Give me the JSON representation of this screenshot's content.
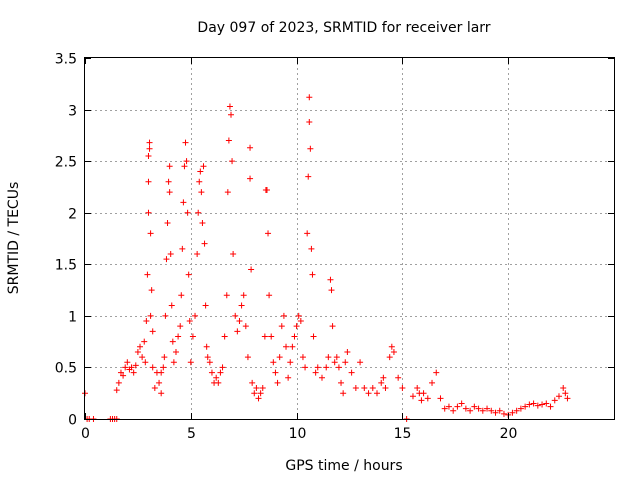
{
  "chart_data": {
    "type": "scatter",
    "title": "Day 097 of 2023, SRMTID for receiver larr",
    "xlabel": "GPS time / hours",
    "ylabel": "SRMTID / TECUs",
    "xlim": [
      0,
      25
    ],
    "ylim": [
      0,
      3.5
    ],
    "x_ticks": [
      0,
      5,
      10,
      15,
      20
    ],
    "x_tick_labels": [
      "0",
      "5",
      "10",
      "15",
      "20"
    ],
    "y_ticks": [
      0,
      0.5,
      1,
      1.5,
      2,
      2.5,
      3,
      3.5
    ],
    "y_tick_labels": [
      "0",
      "0.5",
      "1",
      "1.5",
      "2",
      "2.5",
      "3",
      "3.5"
    ],
    "grid": true,
    "marker": "+",
    "color": "#ff0000",
    "series": [
      {
        "name": "SRMTID",
        "points": [
          [
            0.0,
            0.25
          ],
          [
            0.1,
            0.0
          ],
          [
            0.2,
            0.0
          ],
          [
            0.4,
            0.0
          ],
          [
            1.2,
            0.0
          ],
          [
            1.3,
            0.0
          ],
          [
            1.4,
            0.0
          ],
          [
            1.5,
            0.0
          ],
          [
            1.5,
            0.28
          ],
          [
            1.6,
            0.35
          ],
          [
            1.7,
            0.45
          ],
          [
            1.8,
            0.42
          ],
          [
            1.9,
            0.5
          ],
          [
            2.0,
            0.55
          ],
          [
            2.1,
            0.48
          ],
          [
            2.2,
            0.5
          ],
          [
            2.3,
            0.45
          ],
          [
            2.4,
            0.52
          ],
          [
            2.5,
            0.65
          ],
          [
            2.6,
            0.7
          ],
          [
            2.7,
            0.6
          ],
          [
            2.8,
            0.75
          ],
          [
            2.85,
            0.55
          ],
          [
            2.9,
            0.95
          ],
          [
            2.95,
            1.4
          ],
          [
            3.0,
            2.0
          ],
          [
            3.0,
            2.3
          ],
          [
            3.0,
            2.55
          ],
          [
            3.05,
            2.68
          ],
          [
            3.05,
            2.62
          ],
          [
            3.1,
            1.8
          ],
          [
            3.1,
            1.0
          ],
          [
            3.15,
            1.25
          ],
          [
            3.2,
            0.85
          ],
          [
            3.2,
            0.5
          ],
          [
            3.3,
            0.3
          ],
          [
            3.4,
            0.45
          ],
          [
            3.5,
            0.35
          ],
          [
            3.6,
            0.25
          ],
          [
            3.6,
            0.45
          ],
          [
            3.7,
            0.5
          ],
          [
            3.75,
            0.6
          ],
          [
            3.8,
            1.0
          ],
          [
            3.85,
            1.55
          ],
          [
            3.9,
            1.9
          ],
          [
            3.95,
            2.3
          ],
          [
            4.0,
            2.45
          ],
          [
            4.0,
            2.2
          ],
          [
            4.05,
            1.6
          ],
          [
            4.1,
            1.1
          ],
          [
            4.15,
            0.75
          ],
          [
            4.2,
            0.55
          ],
          [
            4.3,
            0.65
          ],
          [
            4.4,
            0.8
          ],
          [
            4.5,
            0.9
          ],
          [
            4.55,
            1.2
          ],
          [
            4.6,
            1.65
          ],
          [
            4.65,
            2.1
          ],
          [
            4.7,
            2.45
          ],
          [
            4.75,
            2.68
          ],
          [
            4.8,
            2.5
          ],
          [
            4.85,
            2.0
          ],
          [
            4.9,
            1.4
          ],
          [
            4.95,
            0.95
          ],
          [
            5.0,
            0.55
          ],
          [
            5.1,
            0.8
          ],
          [
            5.2,
            1.0
          ],
          [
            5.3,
            1.6
          ],
          [
            5.35,
            2.0
          ],
          [
            5.4,
            2.3
          ],
          [
            5.45,
            2.4
          ],
          [
            5.5,
            2.2
          ],
          [
            5.55,
            1.9
          ],
          [
            5.6,
            2.45
          ],
          [
            5.65,
            1.7
          ],
          [
            5.7,
            1.1
          ],
          [
            5.75,
            0.7
          ],
          [
            5.8,
            0.6
          ],
          [
            5.9,
            0.55
          ],
          [
            6.0,
            0.45
          ],
          [
            6.1,
            0.35
          ],
          [
            6.2,
            0.4
          ],
          [
            6.3,
            0.35
          ],
          [
            6.4,
            0.45
          ],
          [
            6.5,
            0.5
          ],
          [
            6.6,
            0.8
          ],
          [
            6.7,
            1.2
          ],
          [
            6.75,
            2.2
          ],
          [
            6.8,
            2.7
          ],
          [
            6.85,
            3.03
          ],
          [
            6.9,
            2.95
          ],
          [
            6.95,
            2.5
          ],
          [
            7.0,
            1.6
          ],
          [
            7.1,
            1.0
          ],
          [
            7.2,
            0.85
          ],
          [
            7.3,
            0.95
          ],
          [
            7.4,
            1.1
          ],
          [
            7.5,
            1.2
          ],
          [
            7.6,
            0.9
          ],
          [
            7.7,
            0.6
          ],
          [
            7.8,
            2.63
          ],
          [
            7.8,
            2.33
          ],
          [
            7.85,
            1.45
          ],
          [
            7.9,
            0.35
          ],
          [
            8.0,
            0.25
          ],
          [
            8.1,
            0.3
          ],
          [
            8.2,
            0.2
          ],
          [
            8.3,
            0.25
          ],
          [
            8.4,
            0.3
          ],
          [
            8.5,
            0.8
          ],
          [
            8.55,
            2.22
          ],
          [
            8.6,
            2.22
          ],
          [
            8.65,
            1.8
          ],
          [
            8.7,
            1.2
          ],
          [
            8.8,
            0.8
          ],
          [
            8.9,
            0.55
          ],
          [
            9.0,
            0.45
          ],
          [
            9.1,
            0.35
          ],
          [
            9.2,
            0.6
          ],
          [
            9.3,
            0.9
          ],
          [
            9.4,
            1.0
          ],
          [
            9.5,
            0.7
          ],
          [
            9.6,
            0.4
          ],
          [
            9.7,
            0.55
          ],
          [
            9.8,
            0.7
          ],
          [
            9.9,
            0.8
          ],
          [
            10.0,
            0.9
          ],
          [
            10.1,
            1.0
          ],
          [
            10.2,
            0.95
          ],
          [
            10.3,
            0.6
          ],
          [
            10.4,
            0.5
          ],
          [
            10.5,
            1.8
          ],
          [
            10.55,
            2.35
          ],
          [
            10.6,
            3.12
          ],
          [
            10.6,
            2.88
          ],
          [
            10.65,
            2.62
          ],
          [
            10.7,
            1.65
          ],
          [
            10.75,
            1.4
          ],
          [
            10.8,
            0.8
          ],
          [
            10.9,
            0.45
          ],
          [
            11.0,
            0.5
          ],
          [
            11.2,
            0.4
          ],
          [
            11.4,
            0.5
          ],
          [
            11.5,
            0.6
          ],
          [
            11.6,
            1.35
          ],
          [
            11.65,
            1.25
          ],
          [
            11.7,
            0.9
          ],
          [
            11.8,
            0.55
          ],
          [
            11.9,
            0.6
          ],
          [
            12.0,
            0.5
          ],
          [
            12.1,
            0.35
          ],
          [
            12.2,
            0.25
          ],
          [
            12.3,
            0.55
          ],
          [
            12.4,
            0.65
          ],
          [
            12.6,
            0.45
          ],
          [
            12.8,
            0.3
          ],
          [
            13.0,
            0.55
          ],
          [
            13.2,
            0.3
          ],
          [
            13.4,
            0.25
          ],
          [
            13.6,
            0.3
          ],
          [
            13.8,
            0.25
          ],
          [
            14.0,
            0.35
          ],
          [
            14.1,
            0.4
          ],
          [
            14.2,
            0.3
          ],
          [
            14.4,
            0.6
          ],
          [
            14.5,
            0.7
          ],
          [
            14.6,
            0.65
          ],
          [
            14.8,
            0.4
          ],
          [
            15.0,
            0.3
          ],
          [
            15.2,
            0.0
          ],
          [
            15.5,
            0.22
          ],
          [
            15.7,
            0.3
          ],
          [
            15.8,
            0.25
          ],
          [
            15.9,
            0.18
          ],
          [
            16.0,
            0.25
          ],
          [
            16.2,
            0.2
          ],
          [
            16.4,
            0.35
          ],
          [
            16.6,
            0.45
          ],
          [
            16.8,
            0.2
          ],
          [
            17.0,
            0.1
          ],
          [
            17.2,
            0.12
          ],
          [
            17.4,
            0.08
          ],
          [
            17.6,
            0.12
          ],
          [
            17.8,
            0.15
          ],
          [
            18.0,
            0.1
          ],
          [
            18.2,
            0.08
          ],
          [
            18.4,
            0.12
          ],
          [
            18.6,
            0.1
          ],
          [
            18.8,
            0.08
          ],
          [
            19.0,
            0.1
          ],
          [
            19.2,
            0.08
          ],
          [
            19.4,
            0.06
          ],
          [
            19.6,
            0.08
          ],
          [
            19.8,
            0.05
          ],
          [
            20.0,
            0.04
          ],
          [
            20.2,
            0.06
          ],
          [
            20.4,
            0.08
          ],
          [
            20.6,
            0.1
          ],
          [
            20.8,
            0.12
          ],
          [
            21.0,
            0.14
          ],
          [
            21.2,
            0.15
          ],
          [
            21.4,
            0.13
          ],
          [
            21.6,
            0.14
          ],
          [
            21.8,
            0.15
          ],
          [
            22.0,
            0.12
          ],
          [
            22.2,
            0.18
          ],
          [
            22.4,
            0.22
          ],
          [
            22.6,
            0.3
          ],
          [
            22.7,
            0.25
          ],
          [
            22.8,
            0.2
          ]
        ]
      }
    ]
  }
}
